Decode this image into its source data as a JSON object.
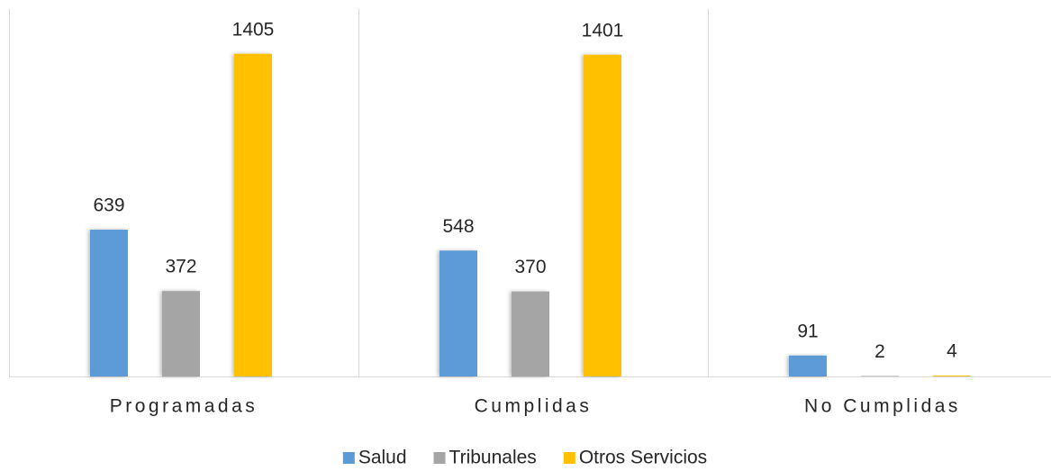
{
  "chart_data": {
    "type": "bar",
    "categories": [
      "Programadas",
      "Cumplidas",
      "No Cumplidas"
    ],
    "series": [
      {
        "name": "Salud",
        "color": "#5b9bd5",
        "values": [
          639,
          548,
          91
        ]
      },
      {
        "name": "Tribunales",
        "color": "#a5a5a5",
        "values": [
          372,
          370,
          2
        ]
      },
      {
        "name": "Otros Servicios",
        "color": "#ffc000",
        "values": [
          1405,
          1401,
          4
        ]
      }
    ],
    "ylim": [
      0,
      1600
    ]
  }
}
